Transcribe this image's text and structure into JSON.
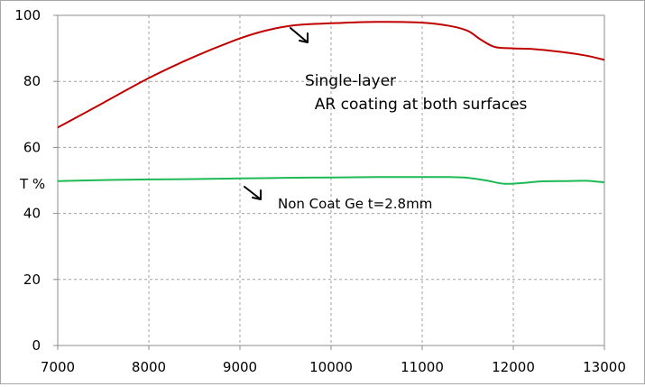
{
  "chart_data": {
    "type": "line",
    "title": "",
    "xlabel": "",
    "ylabel": "T %",
    "xlim": [
      7000,
      13000
    ],
    "ylim": [
      0,
      100
    ],
    "x_ticks": [
      7000,
      8000,
      9000,
      10000,
      11000,
      12000,
      13000
    ],
    "y_ticks": [
      0,
      20,
      40,
      60,
      80,
      100
    ],
    "grid": true,
    "series": [
      {
        "color": "#c00000",
        "points": [
          [
            7000,
            66
          ],
          [
            7500,
            73.5
          ],
          [
            8000,
            81
          ],
          [
            8500,
            87.5
          ],
          [
            9000,
            93
          ],
          [
            9300,
            95.5
          ],
          [
            9600,
            97
          ],
          [
            10000,
            97.6
          ],
          [
            10500,
            98
          ],
          [
            11000,
            97.8
          ],
          [
            11300,
            96.8
          ],
          [
            11500,
            95.3
          ],
          [
            11650,
            92.5
          ],
          [
            11800,
            90.4
          ],
          [
            12000,
            90
          ],
          [
            12200,
            89.8
          ],
          [
            12500,
            89
          ],
          [
            12800,
            87.8
          ],
          [
            13000,
            86.5
          ]
        ]
      },
      {
        "color": "#1db954",
        "points": [
          [
            7000,
            49.8
          ],
          [
            7500,
            50.1
          ],
          [
            8000,
            50.3
          ],
          [
            8500,
            50.4
          ],
          [
            9000,
            50.6
          ],
          [
            9500,
            50.8
          ],
          [
            10000,
            50.9
          ],
          [
            10500,
            51
          ],
          [
            11000,
            51
          ],
          [
            11300,
            51
          ],
          [
            11500,
            50.8
          ],
          [
            11700,
            50
          ],
          [
            11900,
            49
          ],
          [
            12100,
            49.2
          ],
          [
            12300,
            49.7
          ],
          [
            12600,
            49.8
          ],
          [
            12800,
            49.9
          ],
          [
            13000,
            49.4
          ]
        ]
      }
    ],
    "annotations": [
      {
        "lines": [
          "Single-layer",
          "  AR coating at both surfaces"
        ]
      },
      {
        "lines": [
          "Non Coat Ge t=2.8mm"
        ]
      }
    ]
  }
}
